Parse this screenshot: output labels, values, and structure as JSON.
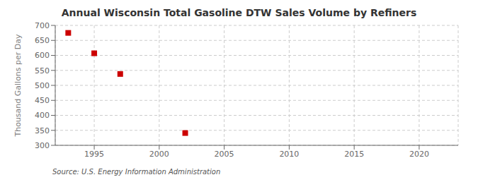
{
  "chart_data": {
    "type": "scatter",
    "title": "Annual Wisconsin Total Gasoline DTW Sales Volume by Refiners",
    "y_label": "Thousand Gallons per Day",
    "annotations": [
      "Source: U.S. Energy Information Administration"
    ],
    "x": [
      1993,
      1995,
      1997,
      2002
    ],
    "values": [
      675,
      607,
      538,
      341
    ],
    "color": "#cc0000",
    "marker": "square",
    "xlim": [
      1992,
      2023
    ],
    "ylim": [
      300,
      700
    ],
    "xticks": [
      1995,
      2000,
      2005,
      2010,
      2015,
      2020
    ],
    "yticks": [
      300,
      350,
      400,
      450,
      500,
      550,
      600,
      650,
      700
    ],
    "grid": true
  }
}
